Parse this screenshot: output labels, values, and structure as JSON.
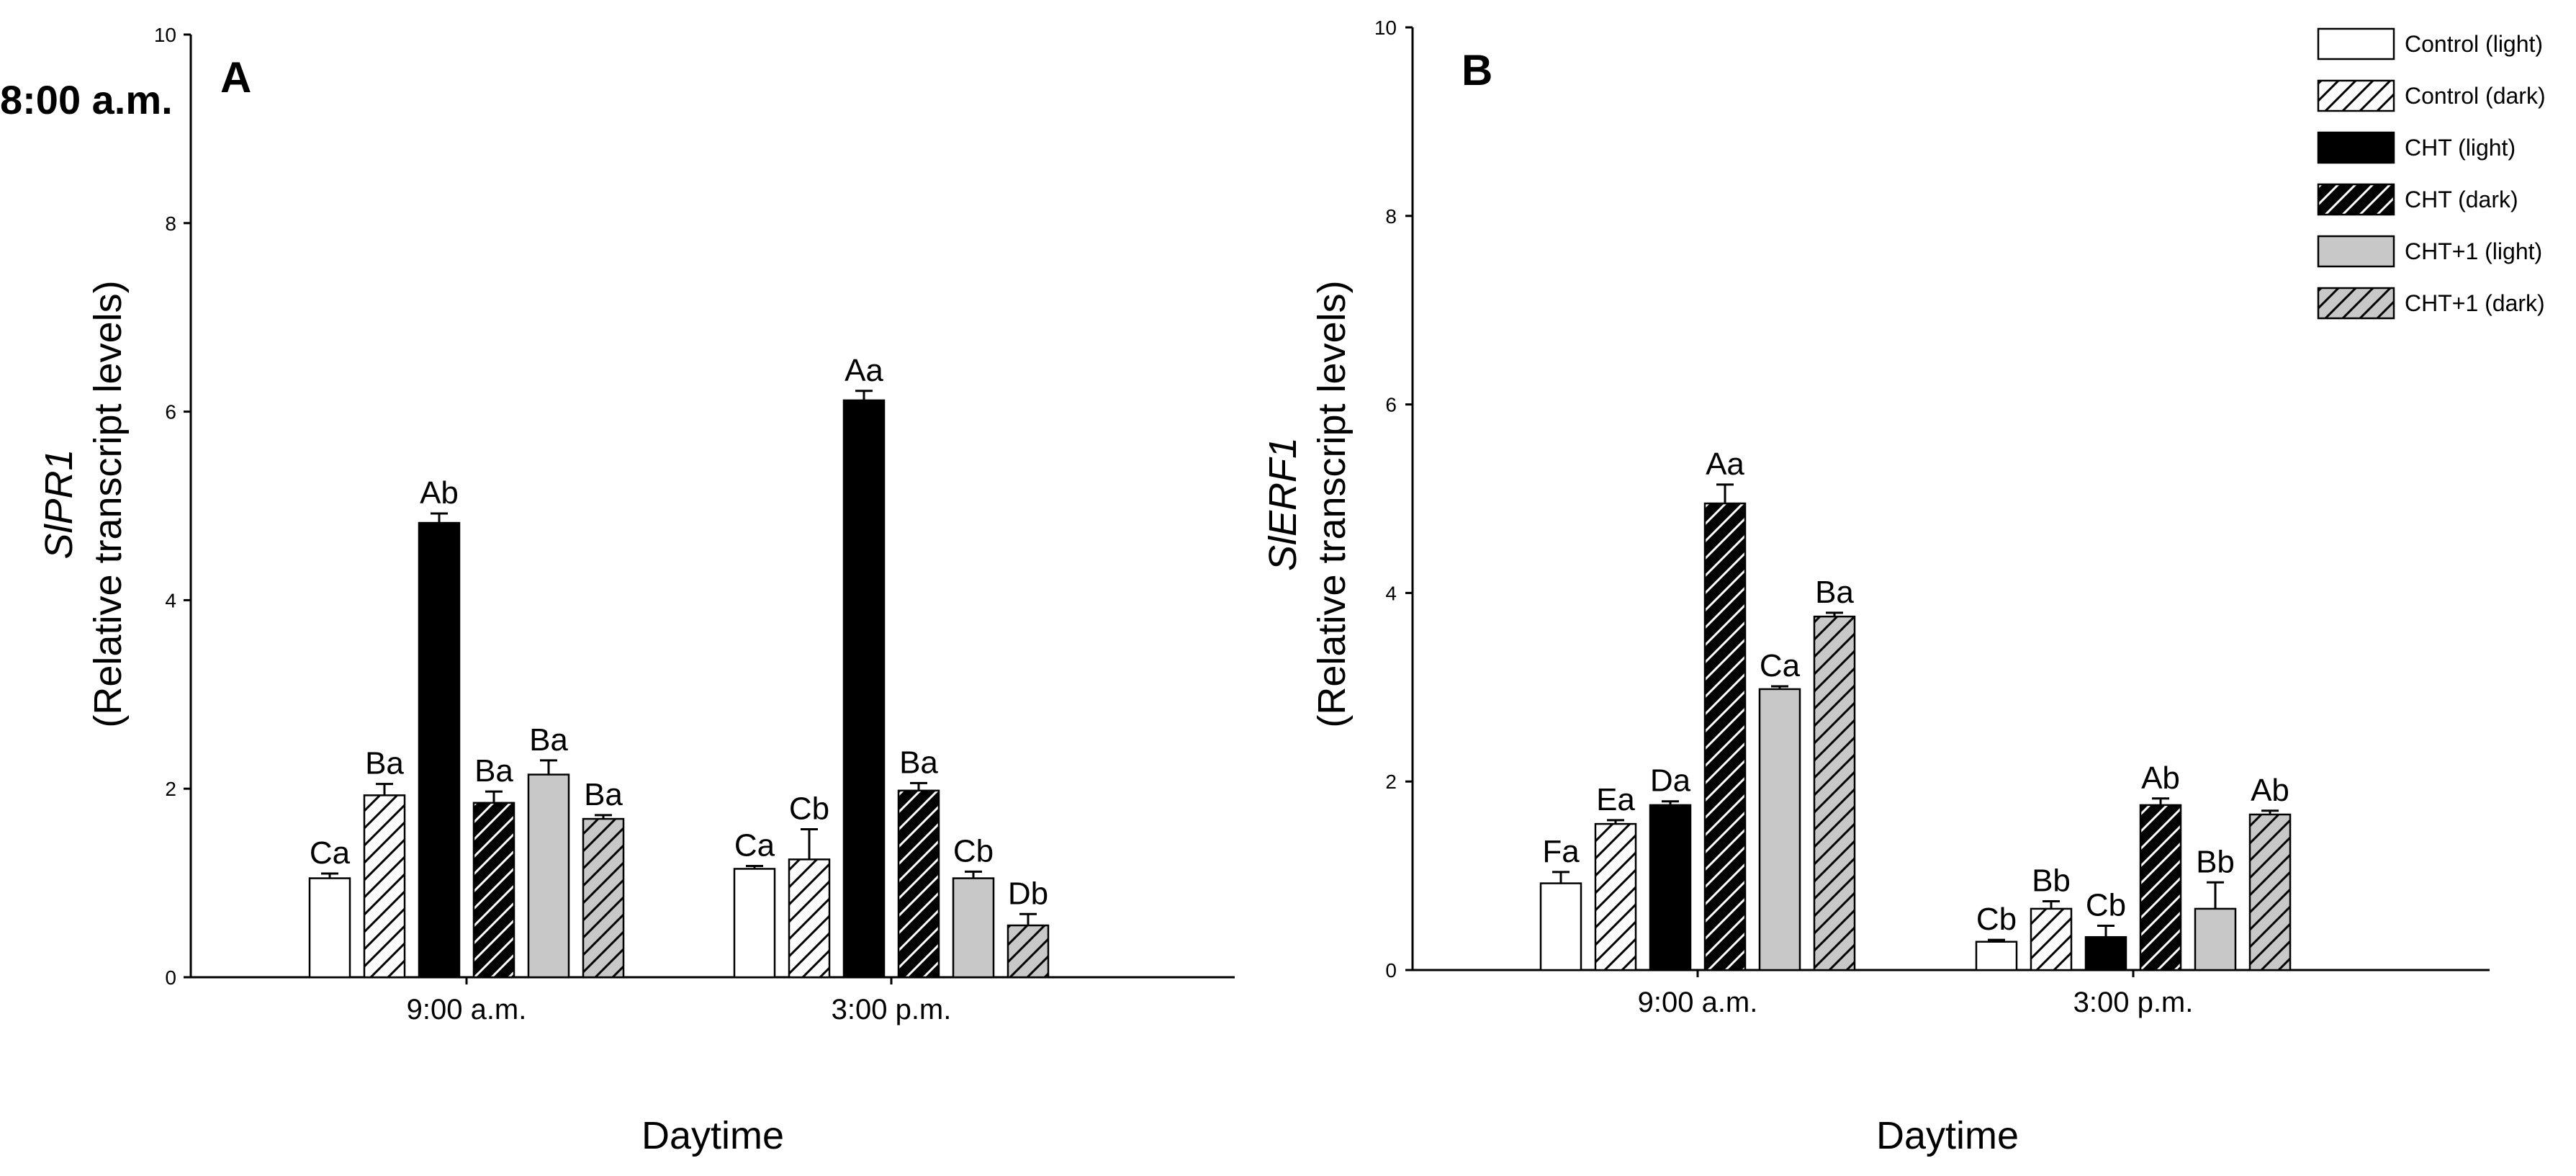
{
  "legend": {
    "items": [
      {
        "label": "Control (light)",
        "fill": "#ffffff",
        "hatch": false
      },
      {
        "label": "Control (dark)",
        "fill": "#ffffff",
        "hatch": true
      },
      {
        "label": "CHT (light)",
        "fill": "#000000",
        "hatch": false
      },
      {
        "label": "CHT (dark)",
        "fill": "#000000",
        "hatch": true
      },
      {
        "label": "CHT+1 (light)",
        "fill": "#c8c8c8",
        "hatch": false
      },
      {
        "label": "CHT+1 (dark)",
        "fill": "#c8c8c8",
        "hatch": true
      }
    ]
  },
  "chart_data": [
    {
      "type": "bar",
      "panel": "A",
      "annotation": "8:00 a.m.",
      "ylabel_gene": "SlPR1",
      "ylabel": "(Relative transcript levels)",
      "xlabel": "Daytime",
      "categories": [
        "9:00 a.m.",
        "3:00 p.m."
      ],
      "ylim": [
        0,
        10
      ],
      "yticks": [
        0,
        2,
        4,
        6,
        8,
        10
      ],
      "series": [
        {
          "name": "Control (light)",
          "values": [
            1.05,
            1.15
          ],
          "errors": [
            0.05,
            0.03
          ],
          "labels": [
            "Ca",
            "Ca"
          ]
        },
        {
          "name": "Control (dark)",
          "values": [
            1.93,
            1.25
          ],
          "errors": [
            0.12,
            0.32
          ],
          "labels": [
            "Ba",
            "Cb"
          ]
        },
        {
          "name": "CHT (light)",
          "values": [
            4.82,
            6.12
          ],
          "errors": [
            0.1,
            0.1
          ],
          "labels": [
            "Ab",
            "Aa"
          ]
        },
        {
          "name": "CHT (dark)",
          "values": [
            1.85,
            1.98
          ],
          "errors": [
            0.12,
            0.08
          ],
          "labels": [
            "Ba",
            "Ba"
          ]
        },
        {
          "name": "CHT+1 (light)",
          "values": [
            2.15,
            1.05
          ],
          "errors": [
            0.15,
            0.07
          ],
          "labels": [
            "Ba",
            "Cb"
          ]
        },
        {
          "name": "CHT+1 (dark)",
          "values": [
            1.68,
            0.55
          ],
          "errors": [
            0.04,
            0.12
          ],
          "labels": [
            "Ba",
            "Db"
          ]
        }
      ]
    },
    {
      "type": "bar",
      "panel": "B",
      "ylabel_gene": "SlERF1",
      "ylabel": "(Relative transcript levels)",
      "xlabel": "Daytime",
      "categories": [
        "9:00 a.m.",
        "3:00 p.m."
      ],
      "ylim": [
        0,
        10
      ],
      "yticks": [
        0,
        2,
        4,
        6,
        8,
        10
      ],
      "series": [
        {
          "name": "Control (light)",
          "values": [
            0.92,
            0.3
          ],
          "errors": [
            0.12,
            0.02
          ],
          "labels": [
            "Fa",
            "Cb"
          ]
        },
        {
          "name": "Control (dark)",
          "values": [
            1.55,
            0.65
          ],
          "errors": [
            0.04,
            0.08
          ],
          "labels": [
            "Ea",
            "Bb"
          ]
        },
        {
          "name": "CHT (light)",
          "values": [
            1.75,
            0.35
          ],
          "errors": [
            0.04,
            0.12
          ],
          "labels": [
            "Da",
            "Cb"
          ]
        },
        {
          "name": "CHT (dark)",
          "values": [
            4.95,
            1.75
          ],
          "errors": [
            0.2,
            0.07
          ],
          "labels": [
            "Aa",
            "Ab"
          ]
        },
        {
          "name": "CHT+1 (light)",
          "values": [
            2.98,
            0.65
          ],
          "errors": [
            0.03,
            0.28
          ],
          "labels": [
            "Ca",
            "Bb"
          ]
        },
        {
          "name": "CHT+1 (dark)",
          "values": [
            3.75,
            1.65
          ],
          "errors": [
            0.04,
            0.04
          ],
          "labels": [
            "Ba",
            "Ab"
          ]
        }
      ]
    }
  ]
}
